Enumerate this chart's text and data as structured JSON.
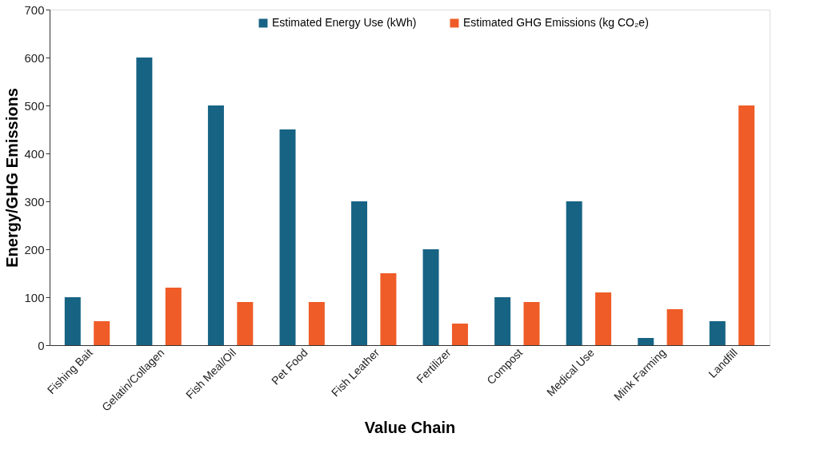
{
  "chart_data": {
    "type": "bar",
    "xlabel": "Value Chain",
    "ylabel": "Energy/GHG Emissions",
    "categories": [
      "Fishing Bait",
      "Gelatin/Collagen",
      "Fish Meal/Oil",
      "Pet Food",
      "Fish Leather",
      "Fertilizer",
      "Compost",
      "Medical Use",
      "Mink Farming",
      "Landfill"
    ],
    "series": [
      {
        "name": "Estimated Energy Use (kWh)",
        "color": "#176384",
        "values": [
          100,
          600,
          500,
          450,
          300,
          200,
          100,
          300,
          15,
          50
        ]
      },
      {
        "name": "Estimated GHG Emissions (kg CO₂e)",
        "color": "#ef5c27",
        "values": [
          50,
          120,
          90,
          90,
          150,
          45,
          90,
          110,
          75,
          500
        ]
      }
    ],
    "ylim": [
      0,
      700
    ],
    "yticks": [
      0,
      100,
      200,
      300,
      400,
      500,
      600,
      700
    ],
    "grid": false,
    "legend": "top"
  }
}
